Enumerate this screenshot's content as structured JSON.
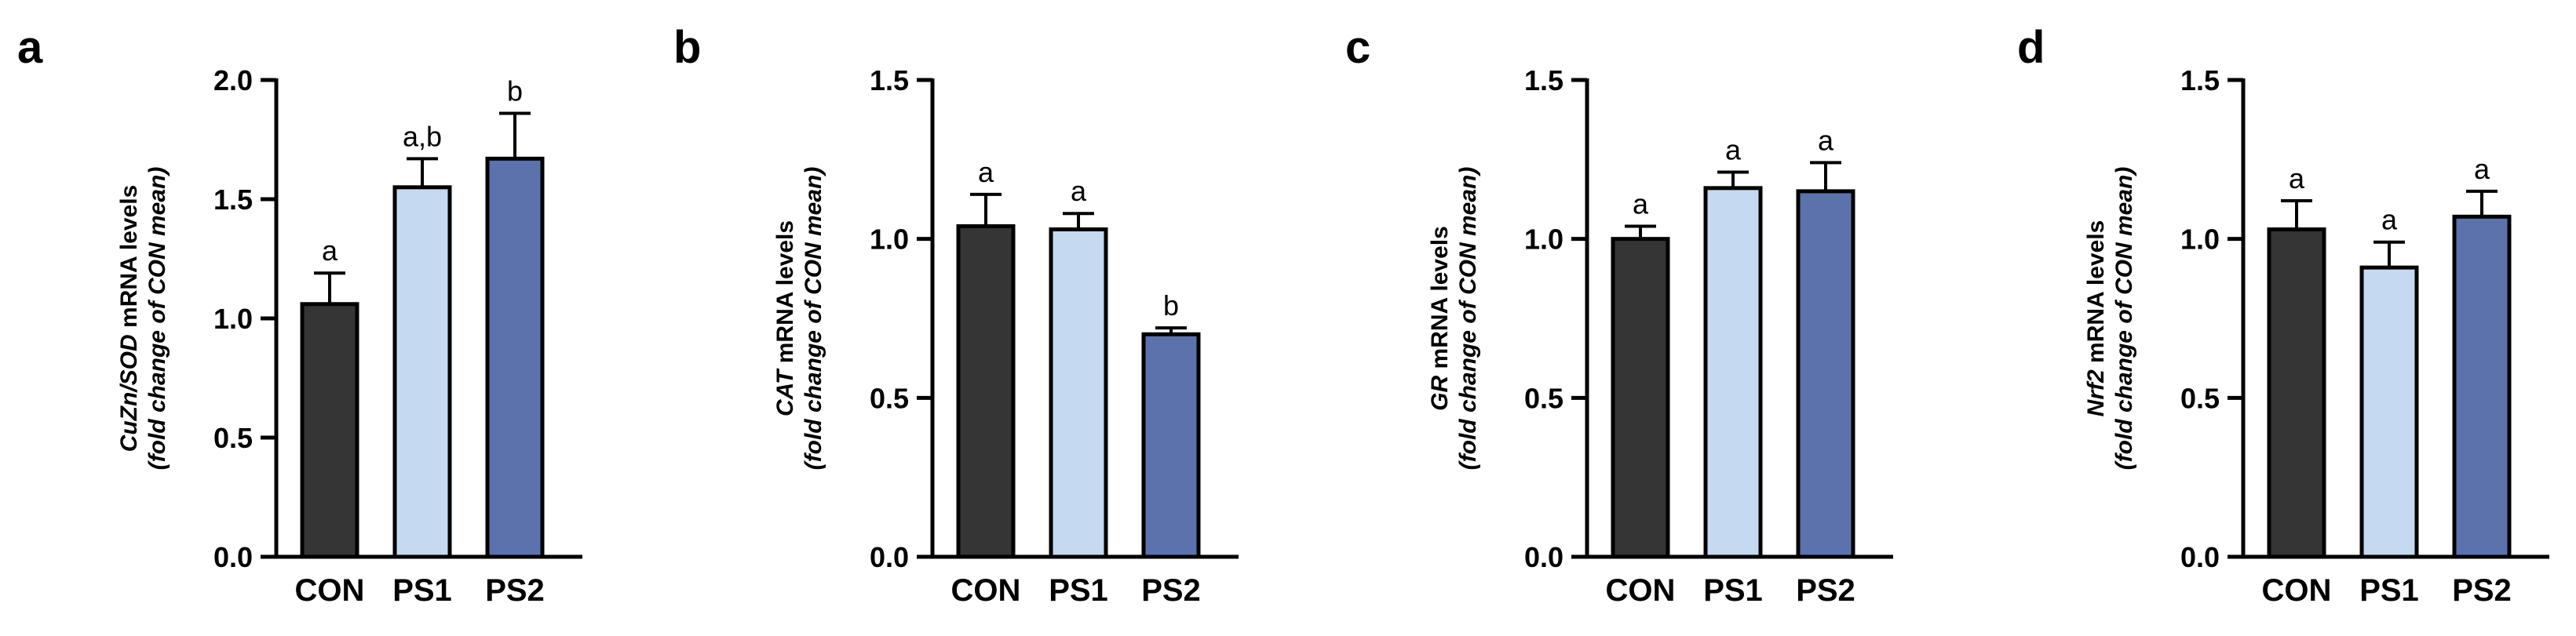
{
  "figure": {
    "colors": {
      "CON": "#353535",
      "PS1": "#c5d9f1",
      "PS2": "#5c72ac"
    }
  },
  "chart_data": [
    {
      "panel": "a",
      "type": "bar",
      "ylabel_gene": "CuZn/SOD",
      "ylabel_rest": " mRNA levels",
      "ylabel_line2": "(fold change of CON mean)",
      "ylim": [
        0,
        2.0
      ],
      "yticks": [
        0.0,
        0.5,
        1.0,
        1.5,
        2.0
      ],
      "ytick_labels": [
        "0.0",
        "0.5",
        "1.0",
        "1.5",
        "2.0"
      ],
      "categories": [
        "CON",
        "PS1",
        "PS2"
      ],
      "values": [
        1.06,
        1.55,
        1.67
      ],
      "errors": [
        0.13,
        0.12,
        0.19
      ],
      "significance": [
        "a",
        "a,b",
        "b"
      ]
    },
    {
      "panel": "b",
      "type": "bar",
      "ylabel_gene": "CAT",
      "ylabel_rest": " mRNA levels",
      "ylabel_line2": "(fold change of CON mean)",
      "ylim": [
        0,
        1.5
      ],
      "yticks": [
        0.0,
        0.5,
        1.0,
        1.5
      ],
      "ytick_labels": [
        "0.0",
        "0.5",
        "1.0",
        "1.5"
      ],
      "categories": [
        "CON",
        "PS1",
        "PS2"
      ],
      "values": [
        1.04,
        1.03,
        0.7
      ],
      "errors": [
        0.1,
        0.05,
        0.02
      ],
      "significance": [
        "a",
        "a",
        "b"
      ]
    },
    {
      "panel": "c",
      "type": "bar",
      "ylabel_gene": "GR",
      "ylabel_rest": " mRNA levels",
      "ylabel_line2": "(fold change of CON mean)",
      "ylim": [
        0,
        1.5
      ],
      "yticks": [
        0.0,
        0.5,
        1.0,
        1.5
      ],
      "ytick_labels": [
        "0.0",
        "0.5",
        "1.0",
        "1.5"
      ],
      "categories": [
        "CON",
        "PS1",
        "PS2"
      ],
      "values": [
        1.0,
        1.16,
        1.15
      ],
      "errors": [
        0.04,
        0.05,
        0.09
      ],
      "significance": [
        "a",
        "a",
        "a"
      ]
    },
    {
      "panel": "d",
      "type": "bar",
      "ylabel_gene": "Nrf2",
      "ylabel_rest": " mRNA levels",
      "ylabel_line2": "(fold change of CON mean)",
      "ylim": [
        0,
        1.5
      ],
      "yticks": [
        0.0,
        0.5,
        1.0,
        1.5
      ],
      "ytick_labels": [
        "0.0",
        "0.5",
        "1.0",
        "1.5"
      ],
      "categories": [
        "CON",
        "PS1",
        "PS2"
      ],
      "values": [
        1.03,
        0.91,
        1.07
      ],
      "errors": [
        0.09,
        0.08,
        0.08
      ],
      "significance": [
        "a",
        "a",
        "a"
      ]
    }
  ]
}
